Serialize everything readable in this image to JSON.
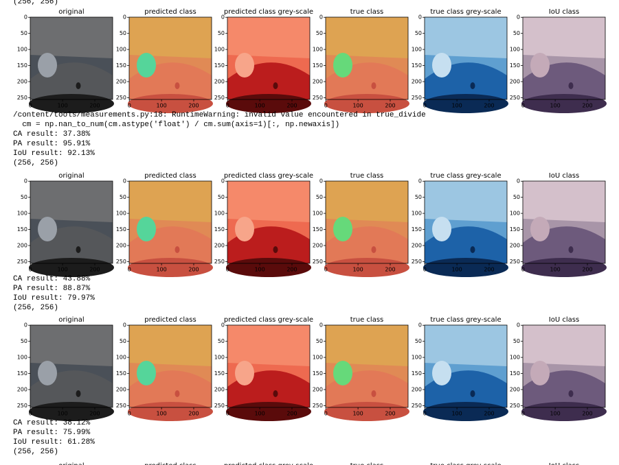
{
  "output": {
    "top_shape": "(256, 256)",
    "panel_titles": [
      "original",
      "predicted class",
      "predicted class grey-scale",
      "true class",
      "true class grey-scale",
      "IoU class"
    ],
    "axes": {
      "xlim": [
        -0.5,
        255.5
      ],
      "ylim": [
        255.5,
        -0.5
      ],
      "xticks": [
        0,
        100,
        200
      ],
      "yticks": [
        0,
        50,
        100,
        150,
        200,
        250
      ]
    },
    "blocks": [
      {
        "warning": [
          "/content/tools/measurements.py:18: RuntimeWarning: invalid value encountered in true_divide",
          "  cm = np.nan_to_num(cm.astype('float') / cm.sum(axis=1)[:, np.newaxis])"
        ],
        "results": [
          "CA result: 37.38%",
          "PA result: 95.91%",
          "IoU result: 92.13%"
        ],
        "shape": "(256, 256)"
      },
      {
        "results": [
          "CA result: 43.88%",
          "PA result: 88.87%",
          "IoU result: 79.97%"
        ],
        "shape": "(256, 256)"
      },
      {
        "results": [
          "CA result: 38.12%",
          "PA result: 75.99%",
          "IoU result: 61.28%"
        ],
        "shape": "(256, 256)"
      }
    ]
  }
}
